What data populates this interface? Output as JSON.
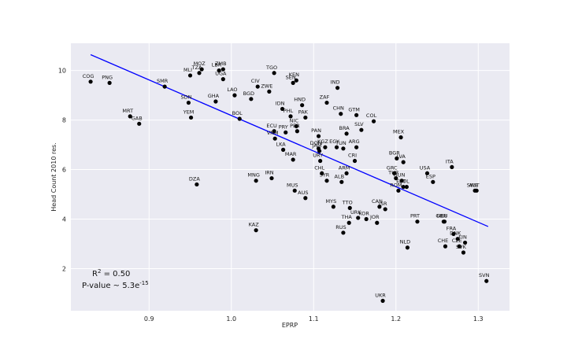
{
  "chart_data": {
    "type": "scatter",
    "title": "",
    "xlabel": "EPRP",
    "ylabel": "Head Count 2010 res.",
    "xlim": [
      0.805,
      1.338
    ],
    "ylim": [
      0.3,
      11.1
    ],
    "xticks": [
      0.9,
      1.0,
      1.1,
      1.2,
      1.3
    ],
    "xtick_labels": [
      "0.9",
      "1.0",
      "1.1",
      "1.2",
      "1.3"
    ],
    "yticks": [
      2,
      4,
      6,
      8,
      10
    ],
    "ytick_labels": [
      "2",
      "4",
      "6",
      "8",
      "10"
    ],
    "grid": true,
    "background": "#eaeaf2",
    "point_color": "#000000",
    "line_color": "#0000ff",
    "points": [
      {
        "x": 0.829,
        "y": 9.55,
        "label": "COG"
      },
      {
        "x": 0.852,
        "y": 9.5,
        "label": "PNG"
      },
      {
        "x": 0.919,
        "y": 9.35,
        "label": "SMR"
      },
      {
        "x": 0.877,
        "y": 8.15,
        "label": "MRT"
      },
      {
        "x": 0.888,
        "y": 7.85,
        "label": "GAB"
      },
      {
        "x": 0.95,
        "y": 9.8,
        "label": "MLI"
      },
      {
        "x": 0.961,
        "y": 9.9,
        "label": "TZA"
      },
      {
        "x": 0.964,
        "y": 10.05,
        "label": "MOZ"
      },
      {
        "x": 0.985,
        "y": 10.0,
        "label": "LBR"
      },
      {
        "x": 0.99,
        "y": 10.05,
        "label": "ZMB"
      },
      {
        "x": 0.99,
        "y": 9.65,
        "label": "UGA"
      },
      {
        "x": 0.948,
        "y": 8.7,
        "label": "SDN"
      },
      {
        "x": 0.981,
        "y": 8.75,
        "label": "GHA"
      },
      {
        "x": 0.951,
        "y": 8.1,
        "label": "YEM"
      },
      {
        "x": 1.004,
        "y": 9.0,
        "label": "LAO"
      },
      {
        "x": 1.024,
        "y": 8.85,
        "label": "BGD"
      },
      {
        "x": 1.032,
        "y": 9.35,
        "label": "CIV"
      },
      {
        "x": 1.046,
        "y": 9.15,
        "label": "ZWE"
      },
      {
        "x": 1.052,
        "y": 9.9,
        "label": "TGO"
      },
      {
        "x": 1.075,
        "y": 9.5,
        "label": "SEN"
      },
      {
        "x": 1.079,
        "y": 9.6,
        "label": "KEN"
      },
      {
        "x": 1.01,
        "y": 8.05,
        "label": "BOL"
      },
      {
        "x": 1.062,
        "y": 8.45,
        "label": "IDN"
      },
      {
        "x": 1.086,
        "y": 8.6,
        "label": "HND"
      },
      {
        "x": 1.072,
        "y": 8.15,
        "label": "PHL"
      },
      {
        "x": 1.09,
        "y": 8.1,
        "label": "PAK"
      },
      {
        "x": 1.079,
        "y": 7.75,
        "label": "NIC"
      },
      {
        "x": 1.052,
        "y": 7.55,
        "label": "ECU"
      },
      {
        "x": 1.066,
        "y": 7.5,
        "label": "PRY"
      },
      {
        "x": 1.08,
        "y": 7.55,
        "label": "PER"
      },
      {
        "x": 1.053,
        "y": 7.25,
        "label": "VNM"
      },
      {
        "x": 1.106,
        "y": 7.35,
        "label": "PAN"
      },
      {
        "x": 1.116,
        "y": 8.7,
        "label": "ZAF"
      },
      {
        "x": 1.129,
        "y": 9.3,
        "label": "IND"
      },
      {
        "x": 1.133,
        "y": 8.25,
        "label": "CHN"
      },
      {
        "x": 1.152,
        "y": 8.2,
        "label": "GTM"
      },
      {
        "x": 1.173,
        "y": 7.95,
        "label": "COL"
      },
      {
        "x": 1.158,
        "y": 7.6,
        "label": "SLV"
      },
      {
        "x": 1.14,
        "y": 7.45,
        "label": "BRA"
      },
      {
        "x": 1.063,
        "y": 6.8,
        "label": "LKA"
      },
      {
        "x": 1.106,
        "y": 6.85,
        "label": "DOM"
      },
      {
        "x": 1.114,
        "y": 6.9,
        "label": "KGZ"
      },
      {
        "x": 1.128,
        "y": 6.9,
        "label": "EGY"
      },
      {
        "x": 1.152,
        "y": 6.9,
        "label": "ARG"
      },
      {
        "x": 1.136,
        "y": 6.85,
        "label": "TUN"
      },
      {
        "x": 1.107,
        "y": 6.75,
        "label": "JAM"
      },
      {
        "x": 1.075,
        "y": 6.4,
        "label": "MAR"
      },
      {
        "x": 1.15,
        "y": 6.35,
        "label": "CRI"
      },
      {
        "x": 1.108,
        "y": 6.35,
        "label": "URY"
      },
      {
        "x": 1.206,
        "y": 7.3,
        "label": "MEX"
      },
      {
        "x": 1.201,
        "y": 6.45,
        "label": "BGR"
      },
      {
        "x": 1.209,
        "y": 6.3,
        "label": "LVA"
      },
      {
        "x": 1.268,
        "y": 6.1,
        "label": "ITA"
      },
      {
        "x": 1.11,
        "y": 5.85,
        "label": "CHL"
      },
      {
        "x": 1.14,
        "y": 5.85,
        "label": "ARM"
      },
      {
        "x": 1.116,
        "y": 5.55,
        "label": "SYR"
      },
      {
        "x": 1.134,
        "y": 5.5,
        "label": "ALB"
      },
      {
        "x": 1.198,
        "y": 5.85,
        "label": "GRC"
      },
      {
        "x": 1.2,
        "y": 5.65,
        "label": "TUR"
      },
      {
        "x": 1.207,
        "y": 5.55,
        "label": "HUN"
      },
      {
        "x": 1.213,
        "y": 5.3,
        "label": "POL"
      },
      {
        "x": 1.203,
        "y": 5.15,
        "label": "ROM"
      },
      {
        "x": 1.209,
        "y": 5.3,
        "label": "EST"
      },
      {
        "x": 1.238,
        "y": 5.85,
        "label": "USA"
      },
      {
        "x": 1.245,
        "y": 5.5,
        "label": "ESP"
      },
      {
        "x": 1.296,
        "y": 5.15,
        "label": "SWE"
      },
      {
        "x": 1.298,
        "y": 5.15,
        "label": "AUT"
      },
      {
        "x": 0.958,
        "y": 5.4,
        "label": "DZA"
      },
      {
        "x": 1.03,
        "y": 5.55,
        "label": "MNG"
      },
      {
        "x": 1.049,
        "y": 5.65,
        "label": "IRN"
      },
      {
        "x": 1.077,
        "y": 5.15,
        "label": "MUS"
      },
      {
        "x": 1.09,
        "y": 4.85,
        "label": "AUS"
      },
      {
        "x": 1.144,
        "y": 4.45,
        "label": "TTO"
      },
      {
        "x": 1.124,
        "y": 4.5,
        "label": "MYS"
      },
      {
        "x": 1.18,
        "y": 4.5,
        "label": "CAN"
      },
      {
        "x": 1.187,
        "y": 4.4,
        "label": "ISR"
      },
      {
        "x": 1.154,
        "y": 4.05,
        "label": "URK"
      },
      {
        "x": 1.164,
        "y": 4.0,
        "label": "KOR"
      },
      {
        "x": 1.143,
        "y": 3.85,
        "label": "THA"
      },
      {
        "x": 1.177,
        "y": 3.85,
        "label": "JOR"
      },
      {
        "x": 1.226,
        "y": 3.9,
        "label": "PRT"
      },
      {
        "x": 1.259,
        "y": 3.9,
        "label": "DEU"
      },
      {
        "x": 1.258,
        "y": 3.9,
        "label": "GBR"
      },
      {
        "x": 1.03,
        "y": 3.55,
        "label": "KAZ"
      },
      {
        "x": 1.136,
        "y": 3.45,
        "label": "RUS"
      },
      {
        "x": 1.27,
        "y": 3.4,
        "label": "FRA"
      },
      {
        "x": 1.275,
        "y": 3.2,
        "label": "DNK"
      },
      {
        "x": 1.284,
        "y": 3.05,
        "label": "FIN"
      },
      {
        "x": 1.277,
        "y": 2.9,
        "label": "CZE"
      },
      {
        "x": 1.282,
        "y": 2.65,
        "label": "SVK"
      },
      {
        "x": 1.214,
        "y": 2.85,
        "label": "NLD"
      },
      {
        "x": 1.26,
        "y": 2.9,
        "label": "CHE"
      },
      {
        "x": 1.31,
        "y": 1.5,
        "label": "SVN"
      },
      {
        "x": 1.184,
        "y": 0.7,
        "label": "UKR"
      }
    ],
    "fit_line": {
      "x": [
        0.829,
        1.312
      ],
      "y": [
        10.64,
        3.7
      ]
    },
    "annotations": {
      "r2_label": "R",
      "r2_exp": "2",
      "r2_value": " = 0.50",
      "pvalue_label": "P-value ~ 5.3e",
      "pvalue_exp": "-15"
    }
  }
}
